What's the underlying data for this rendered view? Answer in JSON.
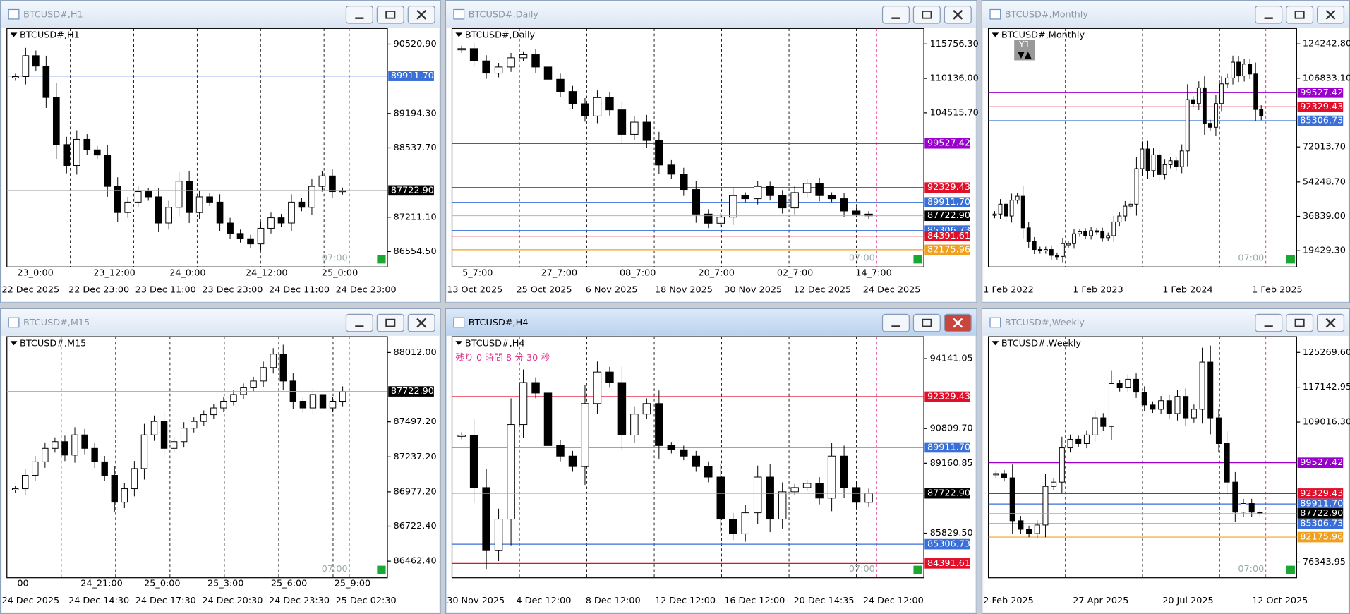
{
  "windows": [
    {
      "title": "BTCUSD#,H1",
      "symbol_label": "BTCUSD#,H1",
      "ylim": [
        86260,
        90820
      ],
      "yticks": [
        "90520.90",
        "89194.30",
        "88537.70",
        "87211.10",
        "86554.50"
      ],
      "grid_times": [
        "23_0:00",
        "23_12:00",
        "24_0:00",
        "24_12:00",
        "25_0:00"
      ],
      "dates": [
        "22 Dec 2025",
        "22 Dec 23:00",
        "23 Dec 11:00",
        "23 Dec 23:00",
        "24 Dec 11:00",
        "24 Dec 23:00"
      ],
      "levels": [
        {
          "price": "89911.70",
          "color": "#3a6fd8"
        }
      ],
      "current": "87722.90",
      "countdown": "07:00",
      "closes": [
        89900,
        90300,
        90100,
        89500,
        88600,
        88200,
        88700,
        88500,
        88400,
        87800,
        87300,
        87500,
        87700,
        87600,
        87100,
        87400,
        87900,
        87300,
        87600,
        87500,
        87100,
        86900,
        86800,
        86700,
        87000,
        87200,
        87100,
        87500,
        87400,
        87800,
        88000,
        87700,
        87722.9
      ]
    },
    {
      "title": "BTCUSD#,Daily",
      "symbol_label": "BTCUSD#,Daily",
      "ylim": [
        79367,
        118285
      ],
      "yticks": [
        "115756.30",
        "110136.00",
        "104515.70"
      ],
      "grid_times": [
        "5_7:00",
        "27_7:00",
        "08_7:00",
        "20_7:00",
        "02_7:00",
        "14_7:00"
      ],
      "dates": [
        "13 Oct 2025",
        "25 Oct 2025",
        "6 Nov 2025",
        "18 Nov 2025",
        "30 Nov 2025",
        "12 Dec 2025",
        "24 Dec 2025"
      ],
      "levels": [
        {
          "price": "99527.42",
          "color": "#9900cc"
        },
        {
          "price": "92329.43",
          "color": "#e0102a"
        },
        {
          "price": "89911.70",
          "color": "#3a6fd8"
        },
        {
          "price": "85306.73",
          "color": "#3a6fd8"
        },
        {
          "price": "84391.61",
          "color": "#e0102a"
        },
        {
          "price": "82175.96",
          "color": "#f0a020"
        }
      ],
      "current": "87722.90",
      "countdown": "07:00",
      "closes": [
        115000,
        113000,
        111000,
        112000,
        113500,
        114000,
        112000,
        110000,
        108000,
        106000,
        104000,
        107000,
        105000,
        101000,
        103000,
        100000,
        96000,
        94500,
        92000,
        88000,
        86500,
        87500,
        91000,
        90500,
        92500,
        91000,
        89000,
        91500,
        93000,
        91000,
        90500,
        88500,
        88000,
        87722.9
      ]
    },
    {
      "title": "BTCUSD#,Monthly",
      "symbol_label": "BTCUSD#,Monthly",
      "period_button": "Y1",
      "ylim": [
        11164,
        132073
      ],
      "yticks": [
        "124242.80",
        "106833.10",
        "72013.70",
        "54248.70",
        "36839.00",
        "19429.30"
      ],
      "grid_times": [],
      "dates": [
        "1 Feb 2022",
        "1 Feb 2023",
        "1 Feb 2024",
        "1 Feb 2025"
      ],
      "levels": [
        {
          "price": "99527.42",
          "color": "#9900cc"
        },
        {
          "price": "92329.43",
          "color": "#e0102a"
        },
        {
          "price": "85306.73",
          "color": "#3a6fd8"
        }
      ],
      "current": "",
      "countdown": "07:00",
      "closes": [
        38000,
        43000,
        37000,
        45000,
        47000,
        31000,
        24000,
        20000,
        19500,
        20000,
        17000,
        16500,
        23000,
        23000,
        28000,
        29000,
        27000,
        29500,
        29000,
        26000,
        27000,
        34000,
        37000,
        42000,
        43000,
        61000,
        71000,
        60000,
        68000,
        58000,
        63000,
        65000,
        62000,
        70000,
        96000,
        94000,
        102000,
        84000,
        82000,
        94000,
        104000,
        107000,
        115000,
        108000,
        114000,
        109000,
        91000,
        87722.9
      ]
    },
    {
      "title": "BTCUSD#,M15",
      "symbol_label": "BTCUSD#,M15",
      "ylim": [
        86339,
        88129
      ],
      "yticks": [
        "88012.00",
        "87497.20",
        "87237.20",
        "86977.20",
        "86722.40",
        "86462.40"
      ],
      "grid_times": [
        "00",
        "24_21:00",
        "25_0:00",
        "25_3:00",
        "25_6:00",
        "25_9:00"
      ],
      "dates": [
        "24 Dec 2025",
        "24 Dec 14:30",
        "24 Dec 17:30",
        "24 Dec 20:30",
        "24 Dec 23:30",
        "25 Dec 02:30"
      ],
      "levels": [],
      "current": "87722.90",
      "countdown": "07:00",
      "closes": [
        87000,
        87100,
        87200,
        87300,
        87350,
        87250,
        87400,
        87300,
        87200,
        87100,
        86900,
        87000,
        87150,
        87400,
        87500,
        87300,
        87350,
        87450,
        87500,
        87550,
        87600,
        87650,
        87700,
        87750,
        87800,
        87900,
        88000,
        87800,
        87650,
        87600,
        87700,
        87600,
        87650,
        87722.9
      ]
    },
    {
      "title": "BTCUSD#,H4",
      "symbol_label": "BTCUSD#,H4",
      "countdown_text": "残り 0 時間 8 分 30 秒",
      "ylim": [
        83708,
        95181
      ],
      "yticks": [
        "94141.05",
        "90809.70",
        "89160.85",
        "85829.50"
      ],
      "grid_times": [],
      "dates": [
        "30 Nov 2025",
        "4 Dec 12:00",
        "8 Dec 12:00",
        "12 Dec 12:00",
        "16 Dec 12:00",
        "20 Dec 14:35",
        "24 Dec 12:00"
      ],
      "levels": [
        {
          "price": "92329.43",
          "color": "#e0102a"
        },
        {
          "price": "89911.70",
          "color": "#3a6fd8"
        },
        {
          "price": "85306.73",
          "color": "#3a6fd8"
        },
        {
          "price": "84391.61",
          "color": "#e0102a"
        }
      ],
      "current": "87722.90",
      "countdown": "07:00",
      "closes": [
        90500,
        88000,
        85000,
        86500,
        91000,
        93000,
        92500,
        90000,
        89500,
        89000,
        92000,
        93500,
        93000,
        90500,
        91500,
        92000,
        90000,
        89800,
        89500,
        89000,
        88500,
        86500,
        85800,
        86800,
        88500,
        86500,
        87800,
        88000,
        88200,
        87500,
        89500,
        88000,
        87300,
        87722.9
      ]
    },
    {
      "title": "BTCUSD#,Weekly",
      "symbol_label": "BTCUSD#,Weekly",
      "ylim": [
        72690,
        128924
      ],
      "yticks": [
        "125269.60",
        "117142.95",
        "109016.30",
        "76343.95"
      ],
      "grid_times": [],
      "dates": [
        "2 Feb 2025",
        "27 Apr 2025",
        "20 Jul 2025",
        "12 Oct 2025"
      ],
      "levels": [
        {
          "price": "99527.42",
          "color": "#9900cc"
        },
        {
          "price": "92329.43",
          "color": "#e0102a"
        },
        {
          "price": "89911.70",
          "color": "#3a6fd8"
        },
        {
          "price": "85306.73",
          "color": "#3a6fd8"
        },
        {
          "price": "82175.96",
          "color": "#f0a020"
        }
      ],
      "current": "87722.90",
      "countdown": "07:00",
      "closes": [
        97000,
        96000,
        86000,
        84000,
        83000,
        85000,
        94000,
        95000,
        103000,
        105000,
        104000,
        106000,
        110000,
        108000,
        118000,
        117000,
        119000,
        116000,
        113000,
        112000,
        114000,
        111000,
        115000,
        110000,
        112000,
        123000,
        110000,
        104000,
        95000,
        88000,
        90000,
        88000,
        87722.9
      ]
    }
  ]
}
